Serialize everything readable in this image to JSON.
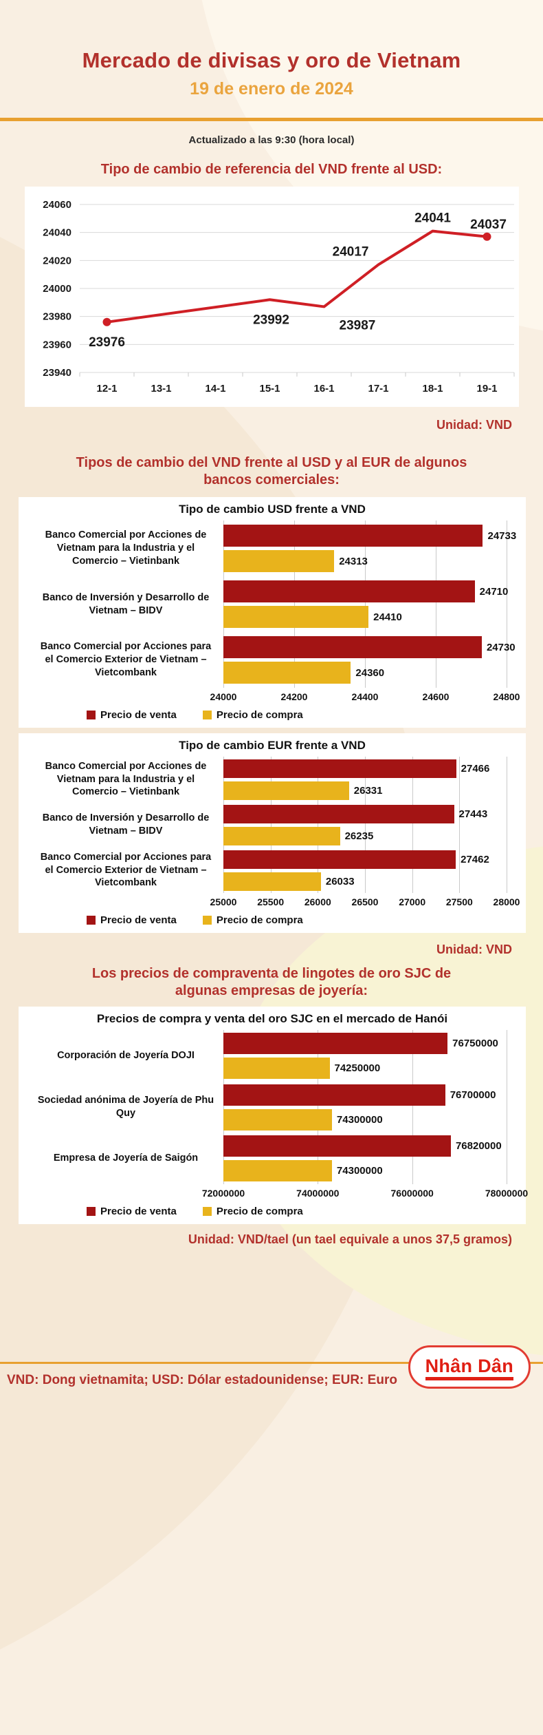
{
  "header": {
    "title": "Mercado de divisas y oro de Vietnam",
    "subtitle": "19 de enero de 2024",
    "updated": "Actualizado a las 9:30 (hora local)"
  },
  "sections": {
    "reference": {
      "title": "Tipo de cambio de referencia del VND frente al USD:",
      "unit": "Unidad: VND"
    },
    "banks": {
      "title": "Tipos de cambio del VND frente al USD y al EUR de algunos bancos comerciales:",
      "unit": "Unidad: VND"
    },
    "gold": {
      "title": "Los precios de compraventa de lingotes de oro SJC de algunas empresas de joyería:",
      "unit": "Unidad: VND/tael (un tael equivale a unos 37,5 gramos)"
    }
  },
  "footer": {
    "note": "VND: Dong vietnamita; USD: Dólar estadounidense; EUR: Euro",
    "logo": "Nhân Dân"
  },
  "colors": {
    "accent_red": "#b2312c",
    "accent_orange": "#e8a030",
    "line_red": "#cf1f25",
    "bar_red": "#a31414",
    "bar_gold": "#e8b31c",
    "grid_gray": "#d8d8d8"
  },
  "chart_data": [
    {
      "type": "line",
      "title": "Tipo de cambio de referencia del VND frente al USD",
      "x": [
        "12-1",
        "13-1",
        "14-1",
        "15-1",
        "16-1",
        "17-1",
        "18-1",
        "19-1"
      ],
      "values": [
        23976,
        null,
        null,
        23992,
        23987,
        24017,
        24041,
        24037
      ],
      "ylim": [
        23940,
        24060
      ],
      "yticks": [
        23940,
        23960,
        23980,
        24000,
        24020,
        24040,
        24060
      ],
      "grid": true,
      "unit": "VND",
      "line_color": "#cf1f25"
    },
    {
      "type": "bar",
      "title": "Tipo de cambio USD frente a VND",
      "categories": [
        "Banco Comercial por Acciones de Vietnam para la Industria y el Comercio – Vietinbank",
        "Banco de Inversión y Desarrollo de Vietnam – BIDV",
        "Banco Comercial por Acciones para el Comercio Exterior de Vietnam – Vietcombank"
      ],
      "series": [
        {
          "name": "Precio de venta",
          "color": "#a31414",
          "values": [
            24733,
            24710,
            24730
          ]
        },
        {
          "name": "Precio de compra",
          "color": "#e8b31c",
          "values": [
            24313,
            24410,
            24360
          ]
        }
      ],
      "xlim": [
        24000,
        24800
      ],
      "xticks": [
        24000,
        24200,
        24400,
        24600,
        24800
      ],
      "grid": true,
      "legend_position": "bottom-left",
      "unit": "VND"
    },
    {
      "type": "bar",
      "title": "Tipo de cambio EUR frente a VND",
      "categories": [
        "Banco Comercial por Acciones de Vietnam para la Industria y el Comercio – Vietinbank",
        "Banco de Inversión y Desarrollo de Vietnam – BIDV",
        "Banco Comercial por Acciones para el Comercio Exterior de Vietnam – Vietcombank"
      ],
      "series": [
        {
          "name": "Precio de venta",
          "color": "#a31414",
          "values": [
            27466,
            27443,
            27462
          ]
        },
        {
          "name": "Precio de compra",
          "color": "#e8b31c",
          "values": [
            26331,
            26235,
            26033
          ]
        }
      ],
      "xlim": [
        25000,
        28000
      ],
      "xticks": [
        25000,
        25500,
        26000,
        26500,
        27000,
        27500,
        28000
      ],
      "grid": true,
      "legend_position": "bottom-left",
      "unit": "VND"
    },
    {
      "type": "bar",
      "title": "Precios de compra y venta del oro SJC en el mercado de Hanói",
      "categories": [
        "Corporación de Joyería DOJI",
        "Sociedad anónima de Joyería de Phu Quy",
        "Empresa de Joyería de Saigón"
      ],
      "series": [
        {
          "name": "Precio de venta",
          "color": "#a31414",
          "values": [
            76750000,
            76700000,
            76820000
          ]
        },
        {
          "name": "Precio de compra",
          "color": "#e8b31c",
          "values": [
            74250000,
            74300000,
            74300000
          ]
        }
      ],
      "xlim": [
        72000000,
        78000000
      ],
      "xticks": [
        72000000,
        74000000,
        76000000,
        78000000
      ],
      "grid": true,
      "legend_position": "bottom-left",
      "unit": "VND/tael"
    }
  ]
}
